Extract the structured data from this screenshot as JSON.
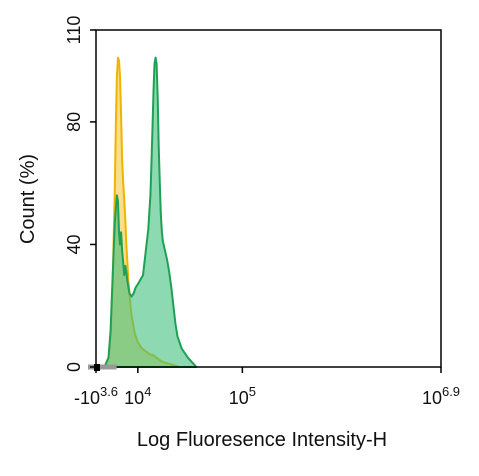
{
  "chart_data": {
    "type": "area",
    "xlabel": "Log Fluoresence Intensity-H",
    "ylabel": "Count  (%)",
    "xscale": "log",
    "xlim_log10": [
      3.6,
      6.9
    ],
    "ylim": [
      0,
      110
    ],
    "grid": false,
    "legend": "none",
    "x_ticks": [
      {
        "base": "-10",
        "exp": "3.6",
        "log10": 3.6
      },
      {
        "base": "10",
        "exp": "4",
        "log10": 4.0
      },
      {
        "base": "10",
        "exp": "5",
        "log10": 5.0
      },
      {
        "base": "10",
        "exp": "6.9",
        "log10": 6.9
      }
    ],
    "y_ticks": [
      0,
      40,
      80,
      110
    ],
    "series": [
      {
        "fill": "#f5c842",
        "stroke": "#f0b400",
        "x_log10": [
          3.6,
          3.68,
          3.72,
          3.74,
          3.76,
          3.78,
          3.79,
          3.8,
          3.81,
          3.82,
          3.83,
          3.84,
          3.85,
          3.86,
          3.87,
          3.88,
          3.89,
          3.9,
          3.91,
          3.92,
          3.93,
          3.94,
          3.95,
          3.96,
          3.97,
          3.98,
          3.99,
          4.0,
          4.02,
          4.04,
          4.06,
          4.08,
          4.1,
          4.12,
          4.14,
          4.16,
          4.18,
          4.2,
          4.22,
          4.25,
          4.3,
          4.4
        ],
        "y": [
          0,
          0,
          3,
          10,
          28,
          58,
          80,
          95,
          101,
          100,
          95,
          82,
          68,
          60,
          55,
          48,
          40,
          34,
          28,
          24,
          20,
          17,
          15,
          13,
          11,
          10,
          9,
          8,
          7,
          6,
          5.5,
          5,
          4.5,
          4,
          4,
          3.5,
          3,
          2.5,
          2,
          1.5,
          1,
          0
        ]
      },
      {
        "fill": "#3fbf7f",
        "stroke": "#1fa055",
        "x_log10": [
          3.6,
          3.68,
          3.72,
          3.74,
          3.76,
          3.78,
          3.79,
          3.8,
          3.81,
          3.82,
          3.83,
          3.84,
          3.85,
          3.86,
          3.87,
          3.88,
          3.89,
          3.9,
          3.91,
          3.92,
          3.94,
          3.96,
          3.98,
          4.0,
          4.05,
          4.1,
          4.12,
          4.13,
          4.14,
          4.15,
          4.16,
          4.17,
          4.18,
          4.19,
          4.2,
          4.21,
          4.22,
          4.23,
          4.24,
          4.26,
          4.28,
          4.3,
          4.32,
          4.34,
          4.36,
          4.38,
          4.4,
          4.42,
          4.44,
          4.46,
          4.48,
          4.52,
          4.56
        ],
        "y": [
          0,
          0,
          3,
          12,
          30,
          47,
          52,
          56,
          54,
          44,
          40,
          44,
          38,
          34,
          30,
          33,
          31,
          28,
          26,
          24,
          23,
          24,
          26,
          27,
          30,
          45,
          56,
          66,
          78,
          90,
          99,
          101,
          99,
          88,
          72,
          60,
          50,
          44,
          41,
          38,
          35,
          31,
          26,
          20,
          14,
          10,
          8,
          6,
          5,
          4,
          3,
          1.5,
          0
        ]
      }
    ]
  }
}
